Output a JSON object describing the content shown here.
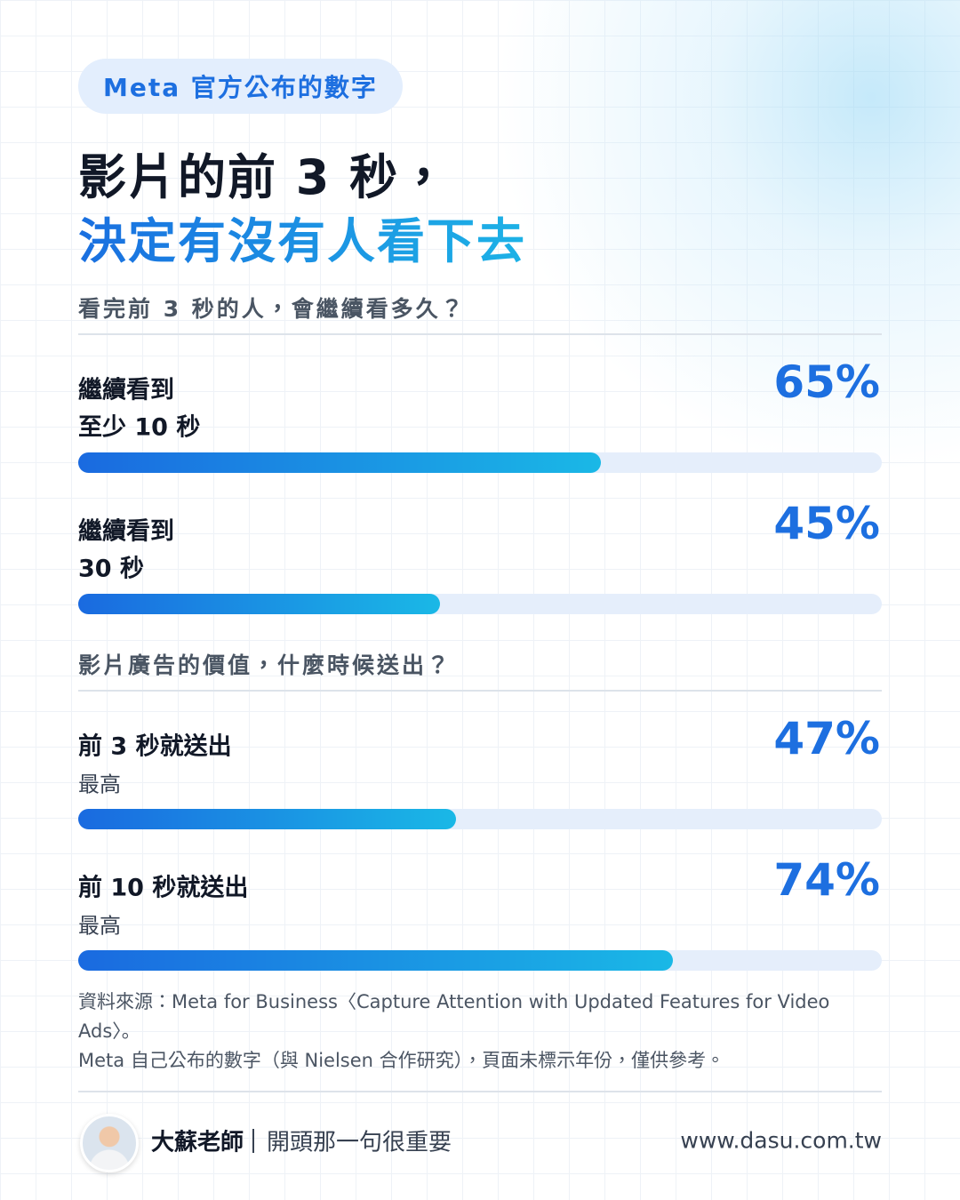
{
  "badge": "Meta 官方公布的數字",
  "title": {
    "line1": "影片的前 3 秒，",
    "line2": "決定有沒有人看下去"
  },
  "scale": [
    0,
    100
  ],
  "sections": [
    {
      "heading": "看完前 3 秒的人，會繼續看多久？",
      "items": [
        {
          "lines": [
            "繼續看到",
            "至少 10 秒"
          ],
          "value": 65,
          "value_label": "65%"
        },
        {
          "lines": [
            "繼續看到",
            "30 秒"
          ],
          "value": 45,
          "value_label": "45%"
        }
      ]
    },
    {
      "heading": "影片廣告的價值，什麼時候送出？",
      "items": [
        {
          "lines": [
            "前 3 秒就送出"
          ],
          "note": "最高",
          "value": 47,
          "value_label": "47%"
        },
        {
          "lines": [
            "前 10 秒就送出"
          ],
          "note": "最高",
          "value": 74,
          "value_label": "74%"
        }
      ]
    }
  ],
  "source": [
    "資料來源：Meta for Business〈Capture Attention with Updated Features for Video Ads〉。",
    "Meta 自己公布的數字（與 Nielsen 合作研究），頁面未標示年份，僅供參考。"
  ],
  "footer": {
    "name": "大蘇老師",
    "tagline": "開頭那一句很重要",
    "url": "www.dasu.com.tw"
  }
}
